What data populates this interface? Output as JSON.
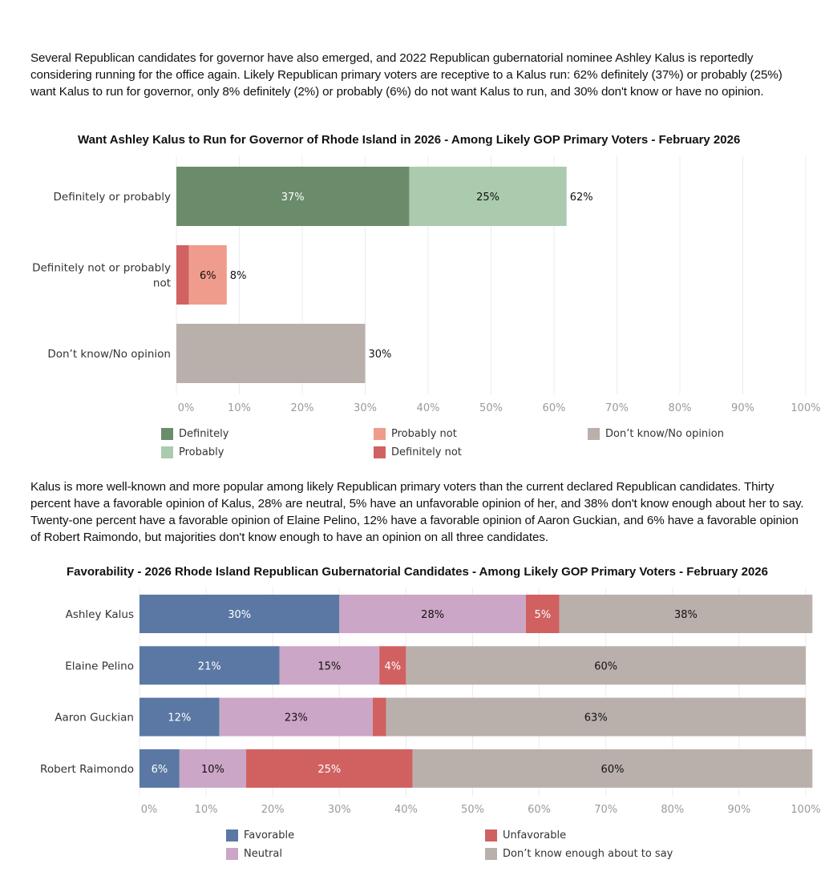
{
  "paragraphs": {
    "intro": "Several Republican candidates for governor have also emerged, and 2022 Republican gubernatorial nominee Ashley Kalus is reportedly considering running for the office again. Likely Republican primary voters are receptive to a Kalus run: 62% definitely (37%) or probably (25%) want Kalus to run for governor, only 8% definitely (2%) or probably (6%) do not want Kalus to run, and 30% don't know or have no opinion.",
    "favorability": "Kalus is more well-known and more popular among likely Republican primary voters than the current declared Republican candidates. Thirty percent have a favorable opinion of Kalus, 28% are neutral, 5% have an unfavorable opinion of her, and 38% don't know enough about her to say. Twenty-one percent have a favorable opinion of Elaine Pelino, 12% have a favorable opinion of Aaron Guckian, and 6% have a favorable opinion of Robert Raimondo, but majorities don't know enough to have an opinion on all three candidates."
  },
  "chart_data": [
    {
      "type": "bar",
      "orientation": "horizontal",
      "stacked": true,
      "title": "Want Ashley Kalus to Run for Governor of Rhode Island in 2026 - Among Likely GOP Primary Voters - February 2026",
      "xlabel": "",
      "ylabel": "",
      "xlim": [
        0,
        100
      ],
      "grid": true,
      "categories": [
        "Definitely or probably",
        "Definitely not or probably not",
        "Don’t know/No opinion"
      ],
      "category_lines": [
        [
          "Definitely or probably"
        ],
        [
          "Definitely not or probably",
          "not"
        ],
        [
          "Don’t know/No opinion"
        ]
      ],
      "x_ticks": [
        "0%",
        "10%",
        "20%",
        "30%",
        "40%",
        "50%",
        "60%",
        "70%",
        "80%",
        "90%",
        "100%"
      ],
      "tick_values": [
        0,
        10,
        20,
        30,
        40,
        50,
        60,
        70,
        80,
        90,
        100
      ],
      "series": [
        {
          "name": "Definitely",
          "color": "#6b8c6b",
          "label_color": "#ffffff",
          "values": [
            37,
            null,
            null
          ],
          "labels": [
            "37%",
            "",
            ""
          ]
        },
        {
          "name": "Probably",
          "color": "#abcbaf",
          "label_color": "#111111",
          "values": [
            25,
            null,
            null
          ],
          "labels": [
            "25%",
            "",
            ""
          ]
        },
        {
          "name": "Definitely not",
          "color": "#d16262",
          "label_color": "#ffffff",
          "values": [
            null,
            2,
            null
          ],
          "labels": [
            "",
            "",
            ""
          ]
        },
        {
          "name": "Probably not",
          "color": "#f09c8c",
          "label_color": "#111111",
          "values": [
            null,
            6,
            null
          ],
          "labels": [
            "",
            "6%",
            ""
          ]
        },
        {
          "name": "Don’t know/No opinion",
          "color": "#b9b0ac",
          "label_color": "#111111",
          "values": [
            null,
            null,
            30
          ],
          "labels": [
            "",
            "",
            ""
          ]
        }
      ],
      "totals": [
        "62%",
        "8%",
        "30%"
      ],
      "legend": {
        "placement": "bottom",
        "columns": [
          [
            {
              "name": "Definitely",
              "color": "#6b8c6b"
            },
            {
              "name": "Probably",
              "color": "#abcbaf"
            }
          ],
          [
            {
              "name": "Probably not",
              "color": "#f09c8c"
            },
            {
              "name": "Definitely not",
              "color": "#d16262"
            }
          ],
          [
            {
              "name": "Don’t know/No opinion",
              "color": "#b9b0ac"
            }
          ]
        ]
      }
    },
    {
      "type": "bar",
      "orientation": "horizontal",
      "stacked": true,
      "title": "Favorability - 2026 Rhode Island Republican Gubernatorial Candidates - Among Likely GOP Primary Voters - February 2026",
      "xlabel": "",
      "ylabel": "",
      "xlim": [
        0,
        100
      ],
      "grid": true,
      "categories": [
        "Ashley Kalus",
        "Elaine Pelino",
        "Aaron Guckian",
        "Robert Raimondo"
      ],
      "x_ticks": [
        "0%",
        "10%",
        "20%",
        "30%",
        "40%",
        "50%",
        "60%",
        "70%",
        "80%",
        "90%",
        "100%"
      ],
      "tick_values": [
        0,
        10,
        20,
        30,
        40,
        50,
        60,
        70,
        80,
        90,
        100
      ],
      "series": [
        {
          "name": "Favorable",
          "color": "#5a78a3",
          "label_color": "#ffffff",
          "values": [
            30,
            21,
            12,
            6
          ],
          "labels": [
            "30%",
            "21%",
            "12%",
            "6%"
          ]
        },
        {
          "name": "Neutral",
          "color": "#cca6c6",
          "label_color": "#111111",
          "values": [
            28,
            15,
            23,
            10
          ],
          "labels": [
            "28%",
            "15%",
            "23%",
            "10%"
          ]
        },
        {
          "name": "Unfavorable",
          "color": "#d16161",
          "label_color": "#ffffff",
          "values": [
            5,
            4,
            2,
            25
          ],
          "labels": [
            "5%",
            "4%",
            "",
            "25%"
          ]
        },
        {
          "name": "Don’t know enough about to say",
          "color": "#b9b0ac",
          "label_color": "#111111",
          "values": [
            38,
            60,
            63,
            60
          ],
          "labels": [
            "38%",
            "60%",
            "63%",
            "60%"
          ]
        }
      ],
      "legend": {
        "placement": "bottom",
        "columns": [
          [
            {
              "name": "Favorable",
              "color": "#5a78a3"
            },
            {
              "name": "Neutral",
              "color": "#cca6c6"
            }
          ],
          [
            {
              "name": "Unfavorable",
              "color": "#d16161"
            },
            {
              "name": "Don’t know enough about to say",
              "color": "#b9b0ac"
            }
          ]
        ]
      }
    }
  ]
}
